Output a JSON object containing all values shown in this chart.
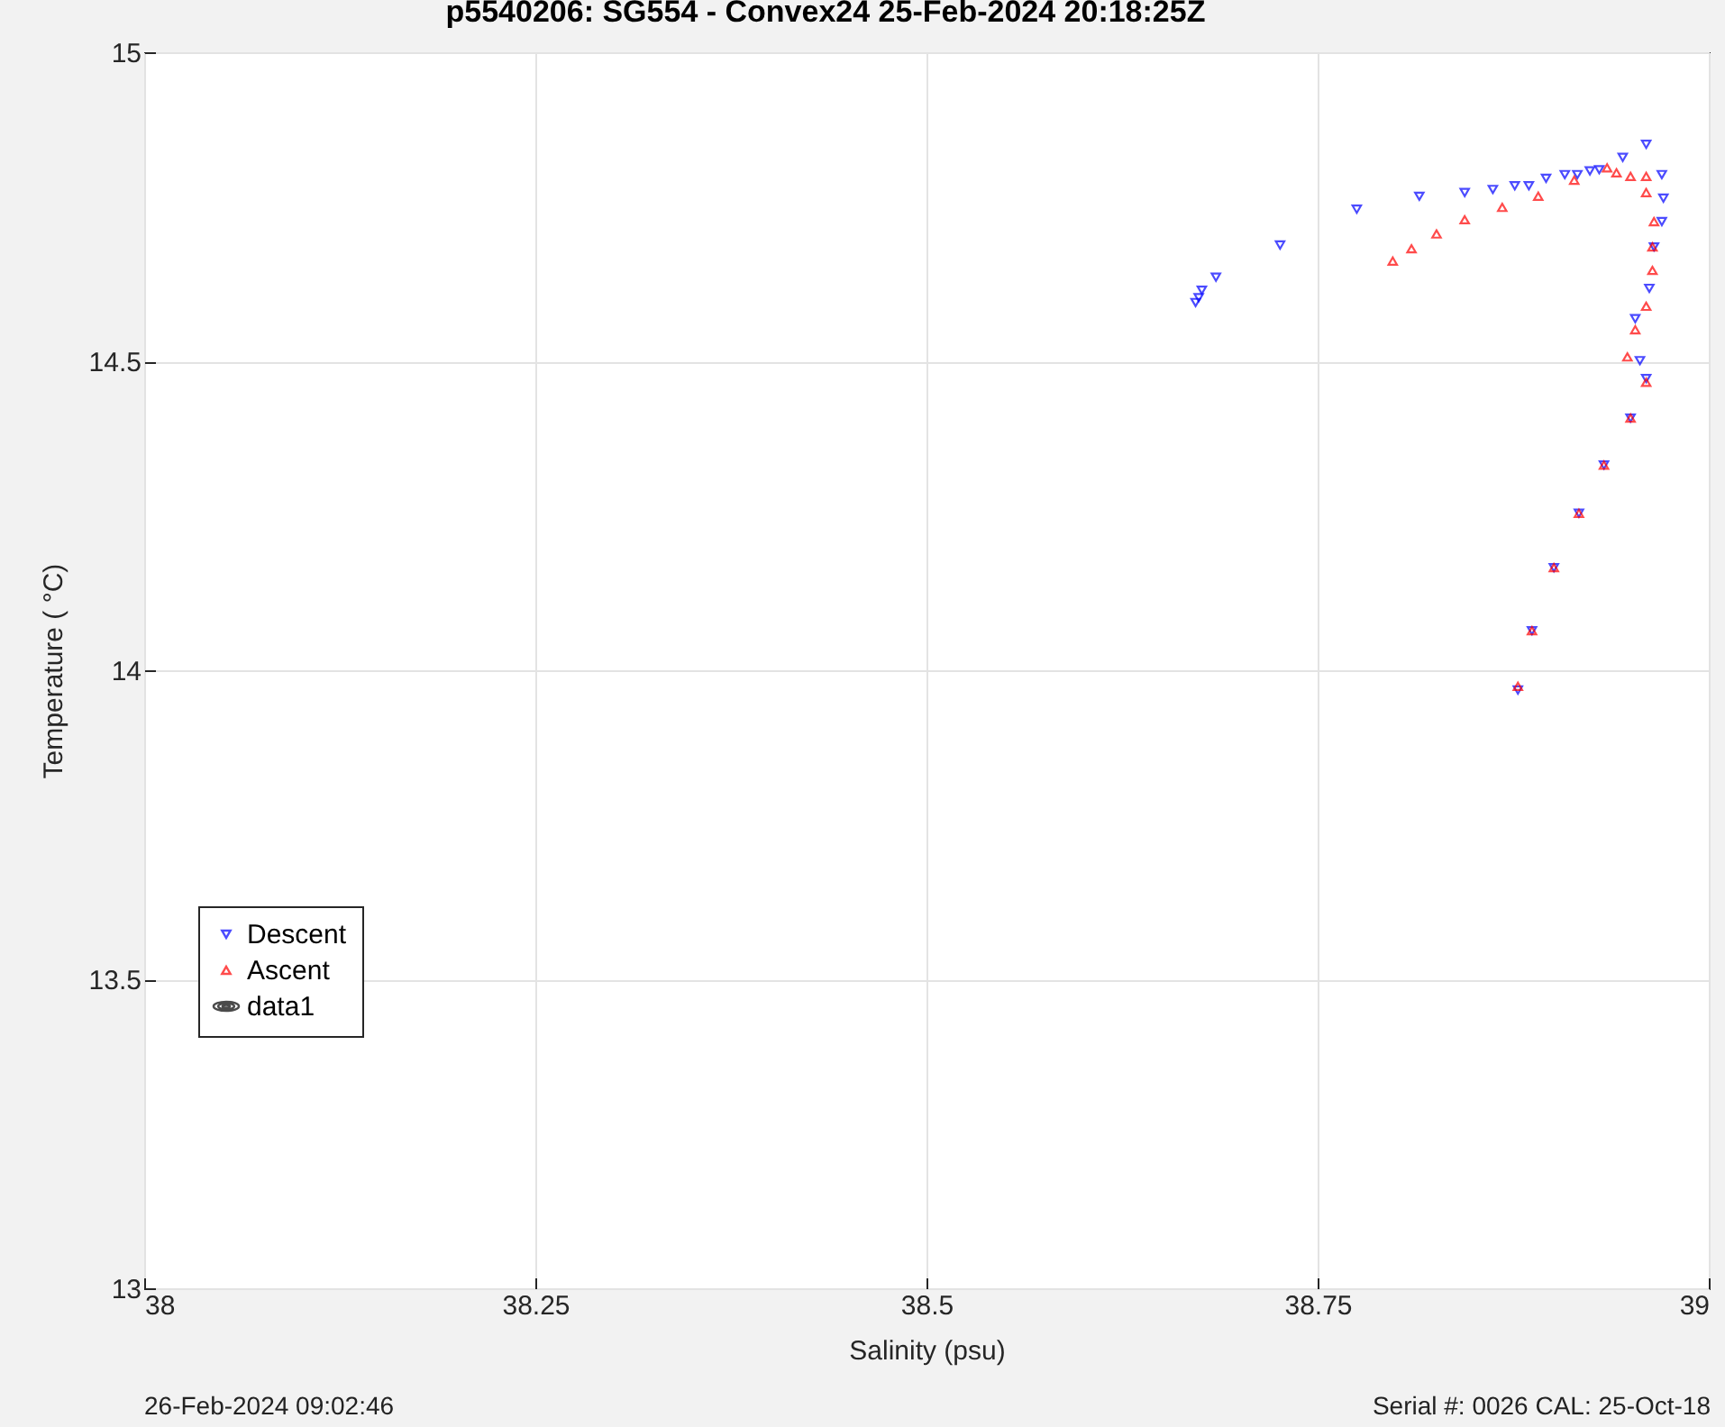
{
  "chart_data": {
    "type": "scatter",
    "title": "p5540206: SG554 - Convex24 25-Feb-2024 20:18:25Z",
    "xlabel": "Salinity (psu)",
    "ylabel": "Temperature (   °C)",
    "xlim": [
      38,
      39
    ],
    "xticks": [
      38,
      38.25,
      38.5,
      38.75,
      39
    ],
    "ylim": [
      13,
      15
    ],
    "yticks": [
      13,
      13.5,
      14,
      14.5,
      15
    ],
    "grid": true,
    "legend": "bottom left",
    "annotations": [
      "26-Feb-2024 09:02:46",
      "Serial #: 0026 CAL: 25-Oct-18"
    ],
    "series": [
      {
        "name": "Descent",
        "color": "#0000ff",
        "marker": "triangle-down",
        "x": [
          38.672,
          38.674,
          38.676,
          38.685,
          38.726,
          38.775,
          38.815,
          38.844,
          38.862,
          38.876,
          38.885,
          38.896,
          38.908,
          38.916,
          38.924,
          38.93,
          38.945,
          38.96,
          38.97,
          38.971,
          38.97,
          38.965,
          38.962,
          38.953,
          38.956,
          38.96,
          38.95,
          38.933,
          38.917,
          38.901,
          38.887,
          38.878
        ],
        "values": [
          14.595,
          14.603,
          14.615,
          14.636,
          14.688,
          14.746,
          14.767,
          14.773,
          14.778,
          14.784,
          14.784,
          14.796,
          14.802,
          14.802,
          14.808,
          14.81,
          14.83,
          14.851,
          14.802,
          14.764,
          14.726,
          14.685,
          14.618,
          14.569,
          14.501,
          14.472,
          14.408,
          14.332,
          14.254,
          14.166,
          14.064,
          13.968
        ]
      },
      {
        "name": "Ascent",
        "color": "#ff0000",
        "marker": "triangle",
        "x": [
          38.878,
          38.887,
          38.901,
          38.917,
          38.933,
          38.95,
          38.96,
          38.948,
          38.953,
          38.96,
          38.964,
          38.964,
          38.965,
          38.96,
          38.96,
          38.95,
          38.941,
          38.935,
          38.914,
          38.891,
          38.868,
          38.844,
          38.826,
          38.81,
          38.798
        ],
        "values": [
          13.974,
          14.064,
          14.166,
          14.254,
          14.332,
          14.408,
          14.466,
          14.507,
          14.551,
          14.589,
          14.647,
          14.685,
          14.726,
          14.773,
          14.799,
          14.799,
          14.805,
          14.813,
          14.793,
          14.767,
          14.749,
          14.729,
          14.706,
          14.682,
          14.662
        ]
      },
      {
        "name": "data1",
        "type": "line",
        "color": "#000000",
        "marker": "none"
      }
    ]
  }
}
